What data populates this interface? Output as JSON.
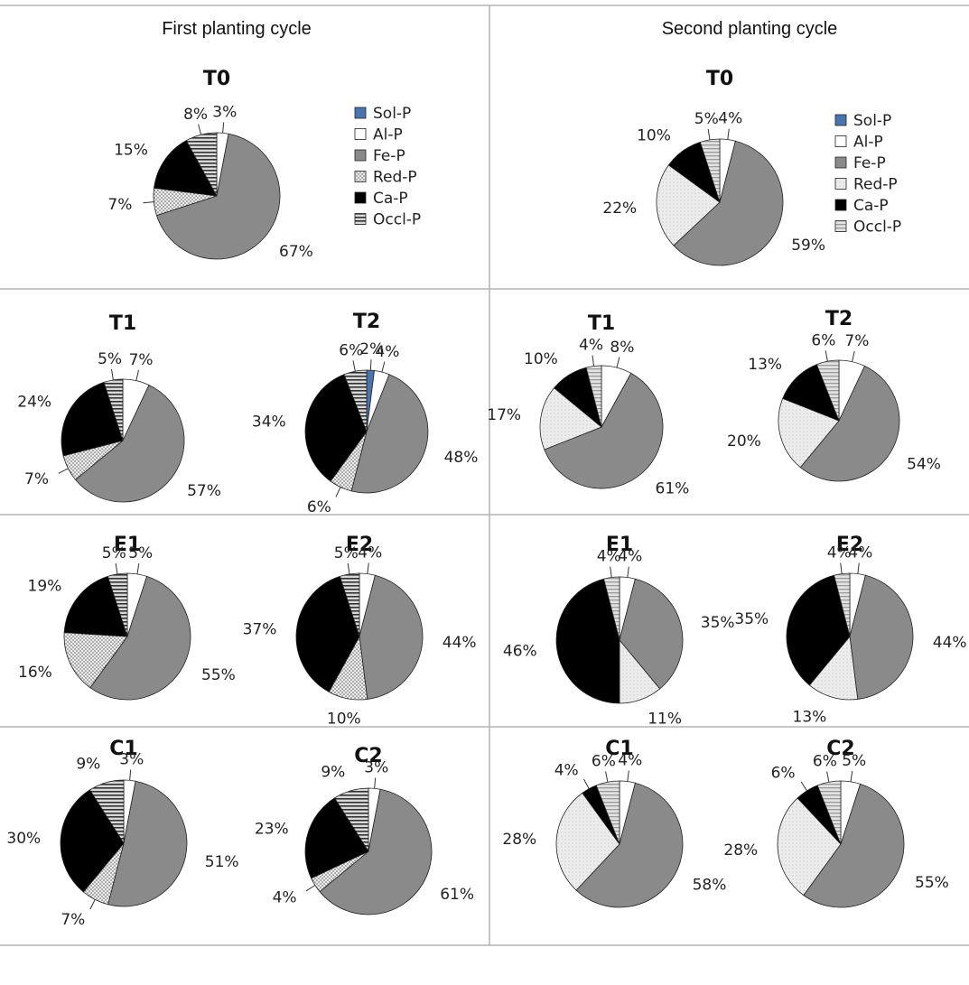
{
  "colors": {
    "Sol-P": "#4a74ad",
    "Al-P": "#ffffff",
    "Fe-P": "#8a8a8a",
    "Red-P": "dots",
    "Ca-P": "#000000",
    "Occl-P": "hstripes",
    "Red-P-second": "#e4e4e4",
    "Occl-P-second": "#c8c8c8"
  },
  "chart_data": {
    "type": "pie",
    "categories": [
      "Sol-P",
      "Al-P",
      "Fe-P",
      "Red-P",
      "Ca-P",
      "Occl-P"
    ],
    "cycles": [
      {
        "title": "First planting cycle",
        "legend": [
          "Sol-P",
          "Al-P",
          "Fe-P",
          "Red-P",
          "Ca-P",
          "Occl-P"
        ],
        "pies": [
          {
            "title": "T0",
            "values": [
              0,
              3,
              67,
              7,
              15,
              8
            ],
            "labels": [
              "",
              "3%",
              "67%",
              "7%",
              "15%",
              "8%"
            ]
          },
          {
            "title": "T1",
            "values": [
              0,
              7,
              57,
              7,
              24,
              5
            ],
            "labels": [
              "",
              "7%",
              "57%",
              "7%",
              "24%",
              "5%"
            ]
          },
          {
            "title": "T2",
            "values": [
              2,
              4,
              48,
              6,
              34,
              6
            ],
            "labels": [
              "2%",
              "4%",
              "48%",
              "6%",
              "34%",
              "6%"
            ]
          },
          {
            "title": "E1",
            "values": [
              0,
              5,
              55,
              16,
              19,
              5
            ],
            "labels": [
              "",
              "5%",
              "55%",
              "16%",
              "19%",
              "5%"
            ]
          },
          {
            "title": "E2",
            "values": [
              0,
              4,
              44,
              10,
              37,
              5
            ],
            "labels": [
              "",
              "4%",
              "44%",
              "10%",
              "37%",
              "5%"
            ]
          },
          {
            "title": "C1",
            "values": [
              0,
              3,
              51,
              7,
              30,
              9
            ],
            "labels": [
              "",
              "3%",
              "51%",
              "7%",
              "30%",
              "9%"
            ]
          },
          {
            "title": "C2",
            "values": [
              0,
              3,
              61,
              4,
              23,
              9
            ],
            "labels": [
              "",
              "3%",
              "61%",
              "4%",
              "23%",
              "9%"
            ]
          }
        ]
      },
      {
        "title": "Second planting cycle",
        "legend": [
          "Sol-P",
          "Al-P",
          "Fe-P",
          "Red-P",
          "Ca-P",
          "Occl-P"
        ],
        "pies": [
          {
            "title": "T0",
            "values": [
              0,
              4,
              59,
              22,
              10,
              5
            ],
            "labels": [
              "",
              "4%",
              "59%",
              "22%",
              "10%",
              "5%"
            ]
          },
          {
            "title": "T1",
            "values": [
              0,
              8,
              61,
              17,
              10,
              4
            ],
            "labels": [
              "",
              "8%",
              "61%",
              "17%",
              "10%",
              "4%"
            ]
          },
          {
            "title": "T2",
            "values": [
              0,
              7,
              54,
              20,
              13,
              6
            ],
            "labels": [
              "",
              "7%",
              "54%",
              "20%",
              "13%",
              "6%"
            ]
          },
          {
            "title": "E1",
            "values": [
              0,
              4,
              35,
              11,
              46,
              4
            ],
            "labels": [
              "",
              "4%",
              "35%",
              "11%",
              "46%",
              "4%"
            ]
          },
          {
            "title": "E2",
            "values": [
              0,
              4,
              44,
              13,
              35,
              4
            ],
            "labels": [
              "",
              "4%",
              "44%",
              "13%",
              "35%",
              "4%"
            ]
          },
          {
            "title": "C1",
            "values": [
              0,
              4,
              58,
              28,
              4,
              6
            ],
            "labels": [
              "",
              "4%",
              "58%",
              "28%",
              "4%",
              "6%"
            ]
          },
          {
            "title": "C2",
            "values": [
              0,
              5,
              55,
              28,
              6,
              6
            ],
            "labels": [
              "",
              "5%",
              "55%",
              "28%",
              "6%",
              "6%"
            ]
          }
        ]
      }
    ]
  }
}
